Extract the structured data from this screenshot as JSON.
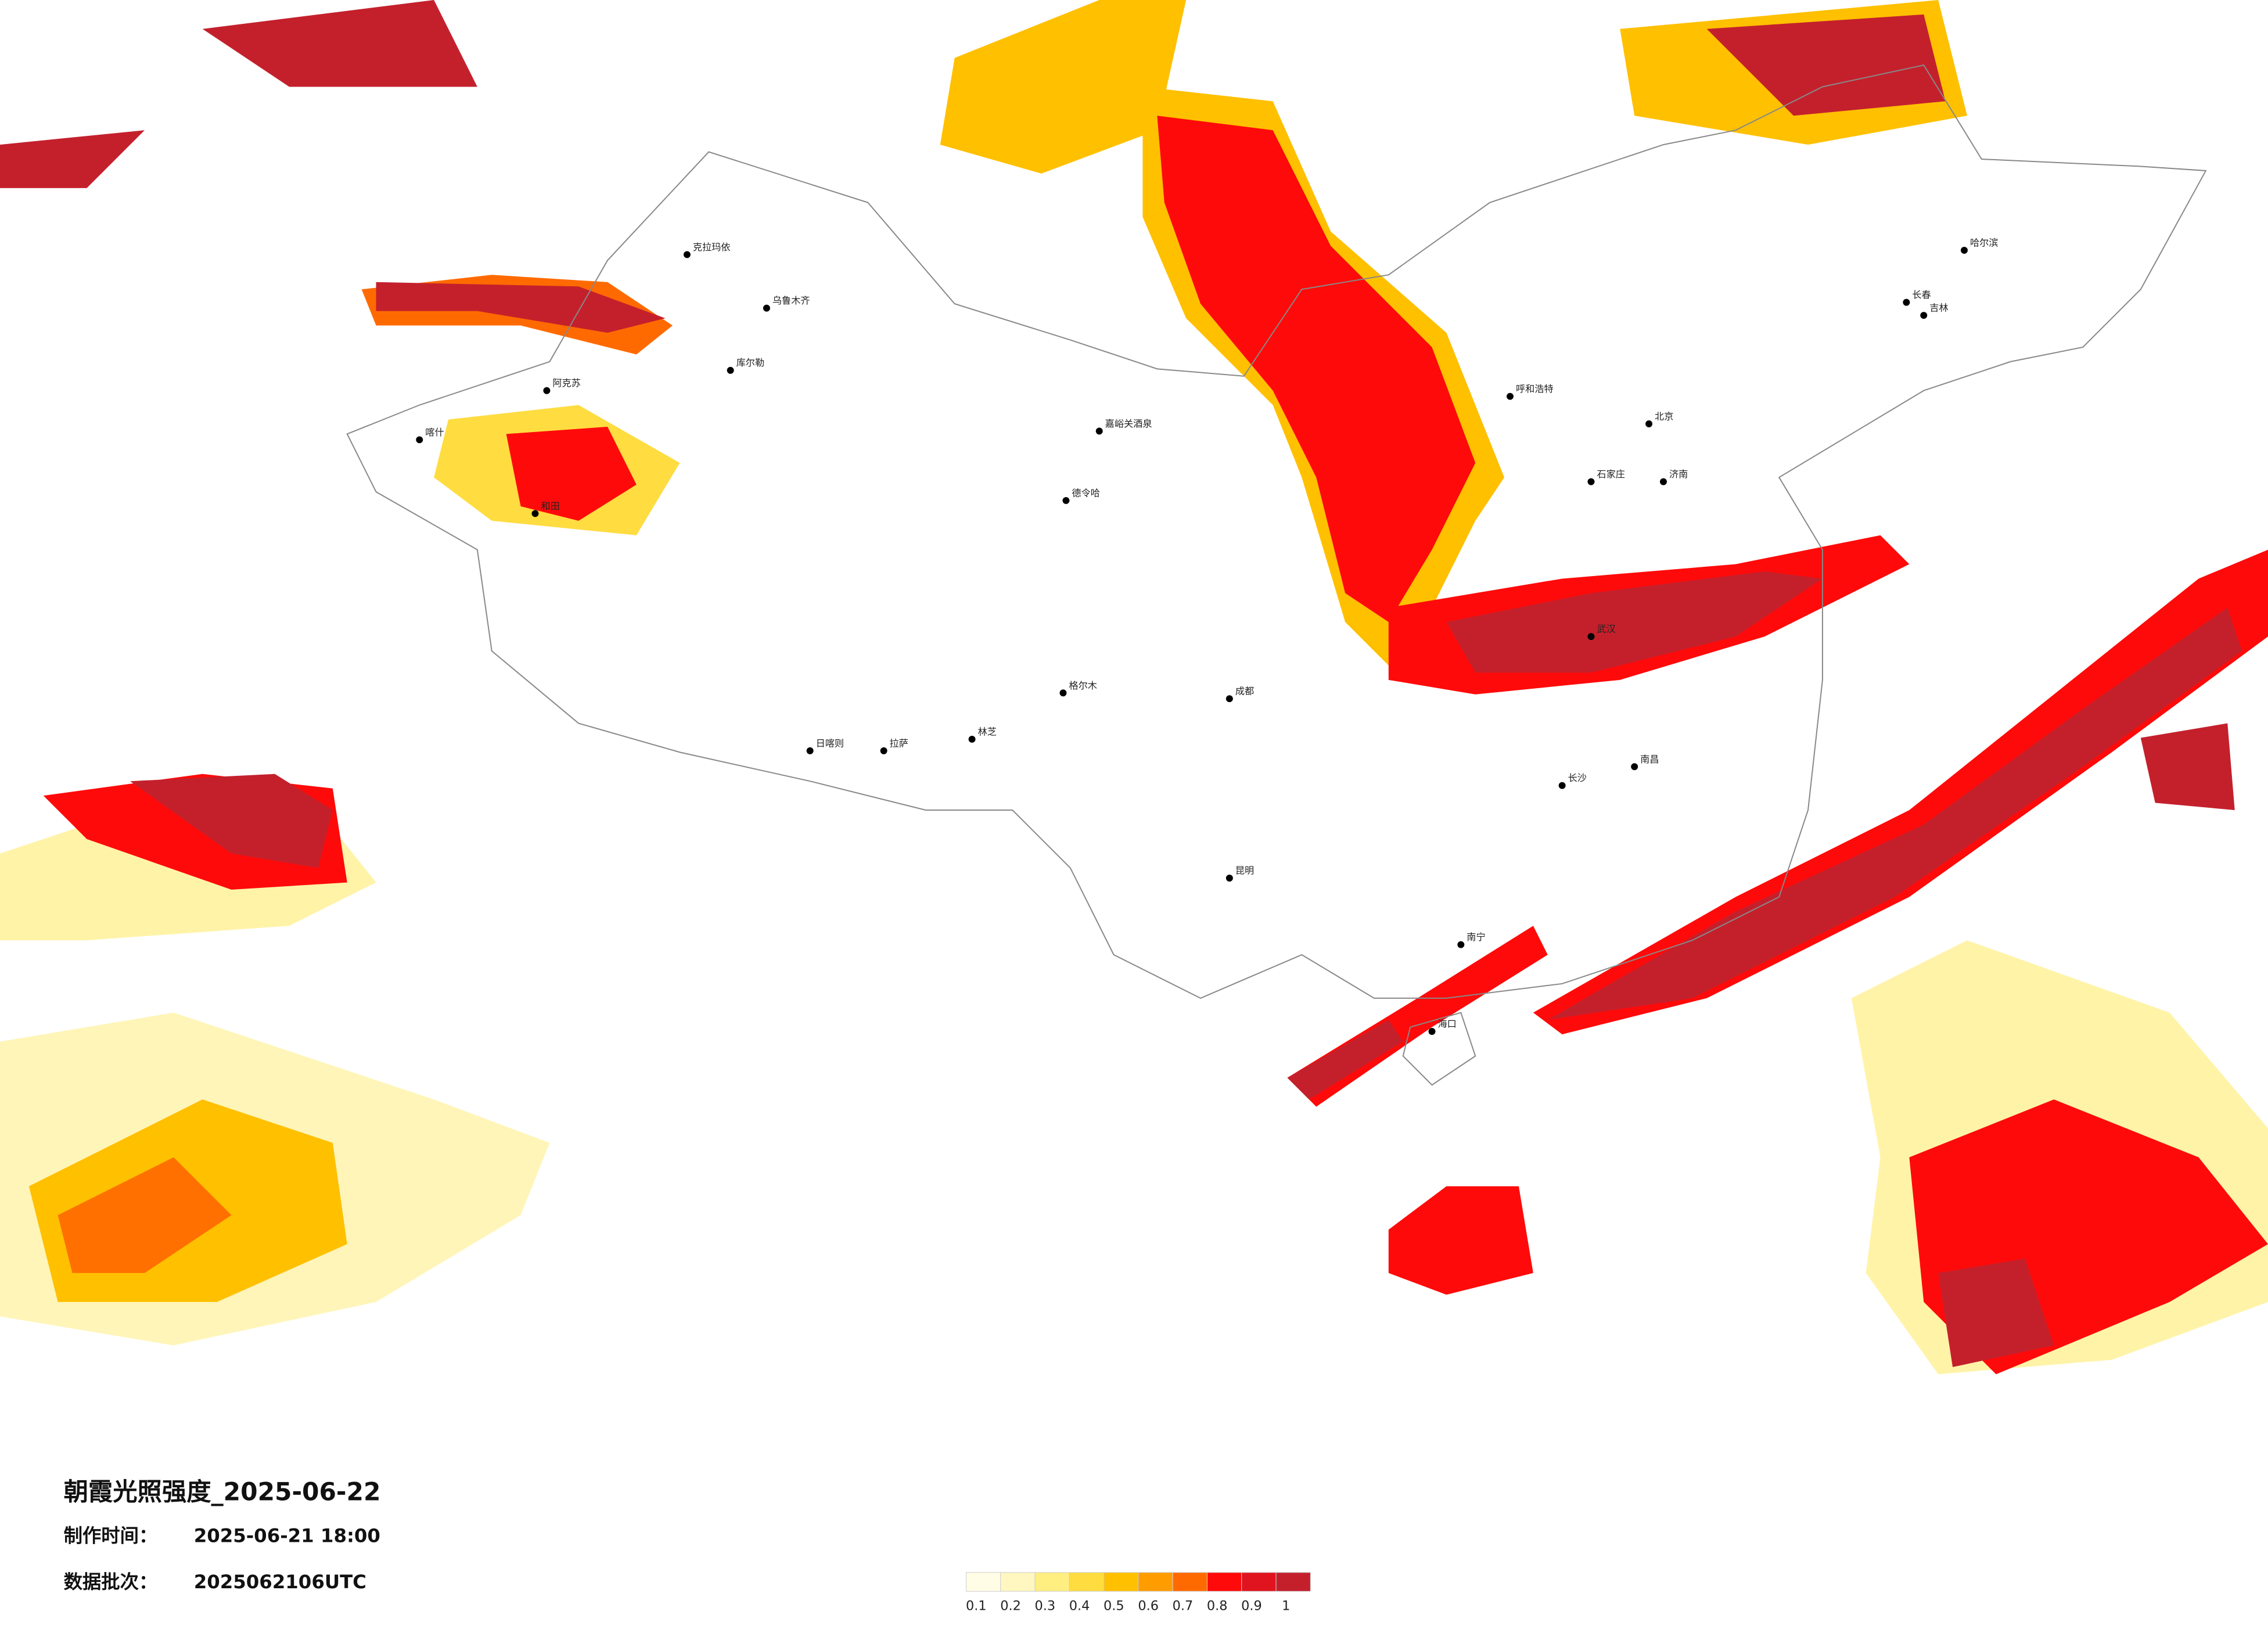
{
  "header": {
    "title": "朝霞光照强度_2025-06-22",
    "made_label": "制作时间：",
    "made_value": "2025-06-21 18:00",
    "batch_label": "数据批次：",
    "batch_value": "2025062106UTC"
  },
  "legend": {
    "ticks": [
      0.1,
      0.2,
      0.3,
      0.4,
      0.5,
      0.6,
      0.7,
      0.8,
      0.9,
      1
    ],
    "colors": [
      "#fffde6",
      "#fff7bf",
      "#ffee80",
      "#ffdc40",
      "#ffc000",
      "#ff9c00",
      "#ff6a00",
      "#ff0a0a",
      "#e0141e",
      "#c4202c"
    ]
  },
  "cities": [
    "克拉玛依",
    "乌鲁木齐",
    "库尔勒",
    "阿克苏",
    "喀什",
    "和田",
    "嘉峪关酒泉",
    "德令哈",
    "格尔木",
    "日喀则",
    "拉萨",
    "林芝",
    "呼和浩特",
    "北京",
    "哈尔滨",
    "长春",
    "吉林",
    "成都",
    "昆明",
    "南宁",
    "海口",
    "长沙",
    "南昌",
    "武汉",
    "济南",
    "石家庄"
  ]
}
